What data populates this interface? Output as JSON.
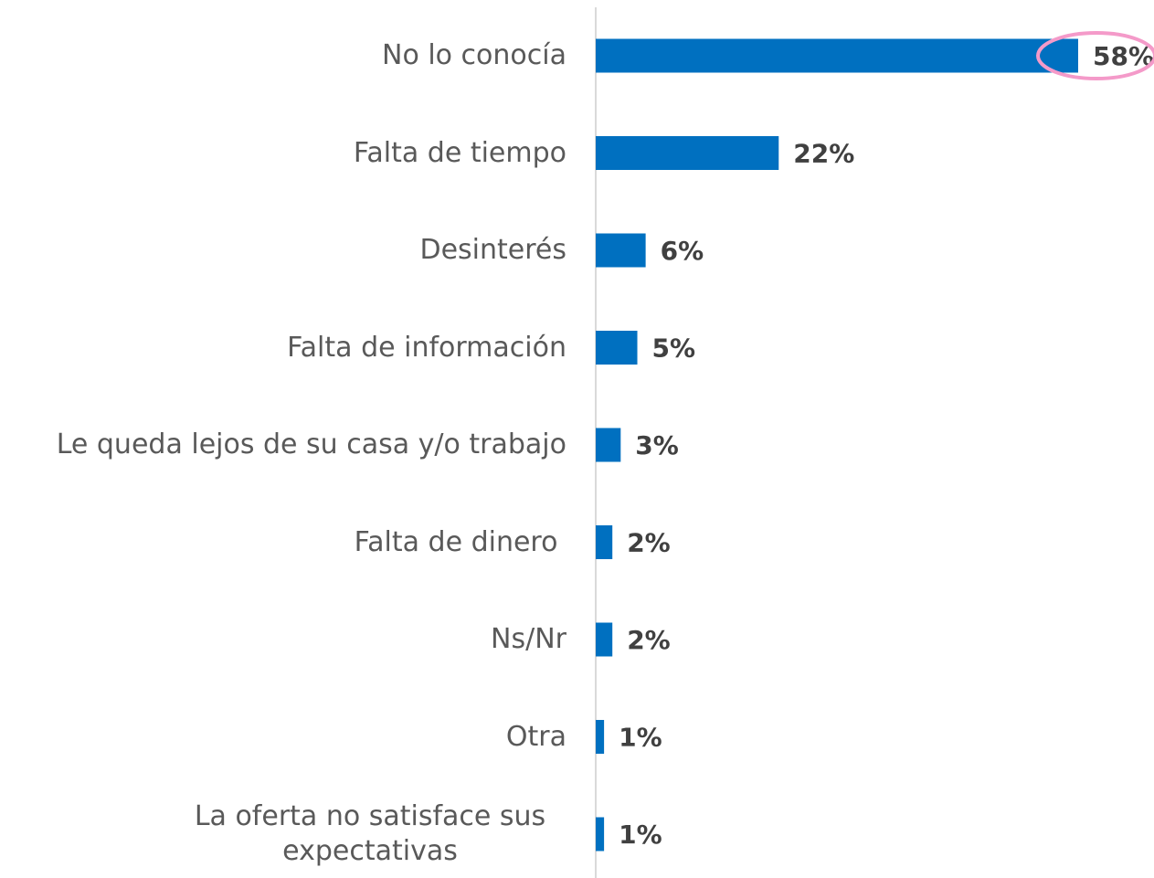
{
  "chart_data": {
    "type": "bar",
    "orientation": "horizontal",
    "categories": [
      "No lo conocía",
      "Falta de tiempo",
      "Desinterés",
      "Falta de información",
      "Le queda lejos de su casa y/o trabajo",
      "Falta de dinero ",
      "Ns/Nr",
      "Otra",
      "La oferta no satisface sus expectativas"
    ],
    "values": [
      58,
      22,
      6,
      5,
      3,
      2,
      2,
      1,
      1
    ],
    "value_labels": [
      "58%",
      "22%",
      "6%",
      "5%",
      "3%",
      "2%",
      "2%",
      "1%",
      "1%"
    ],
    "color": "#0070c0"
  }
}
